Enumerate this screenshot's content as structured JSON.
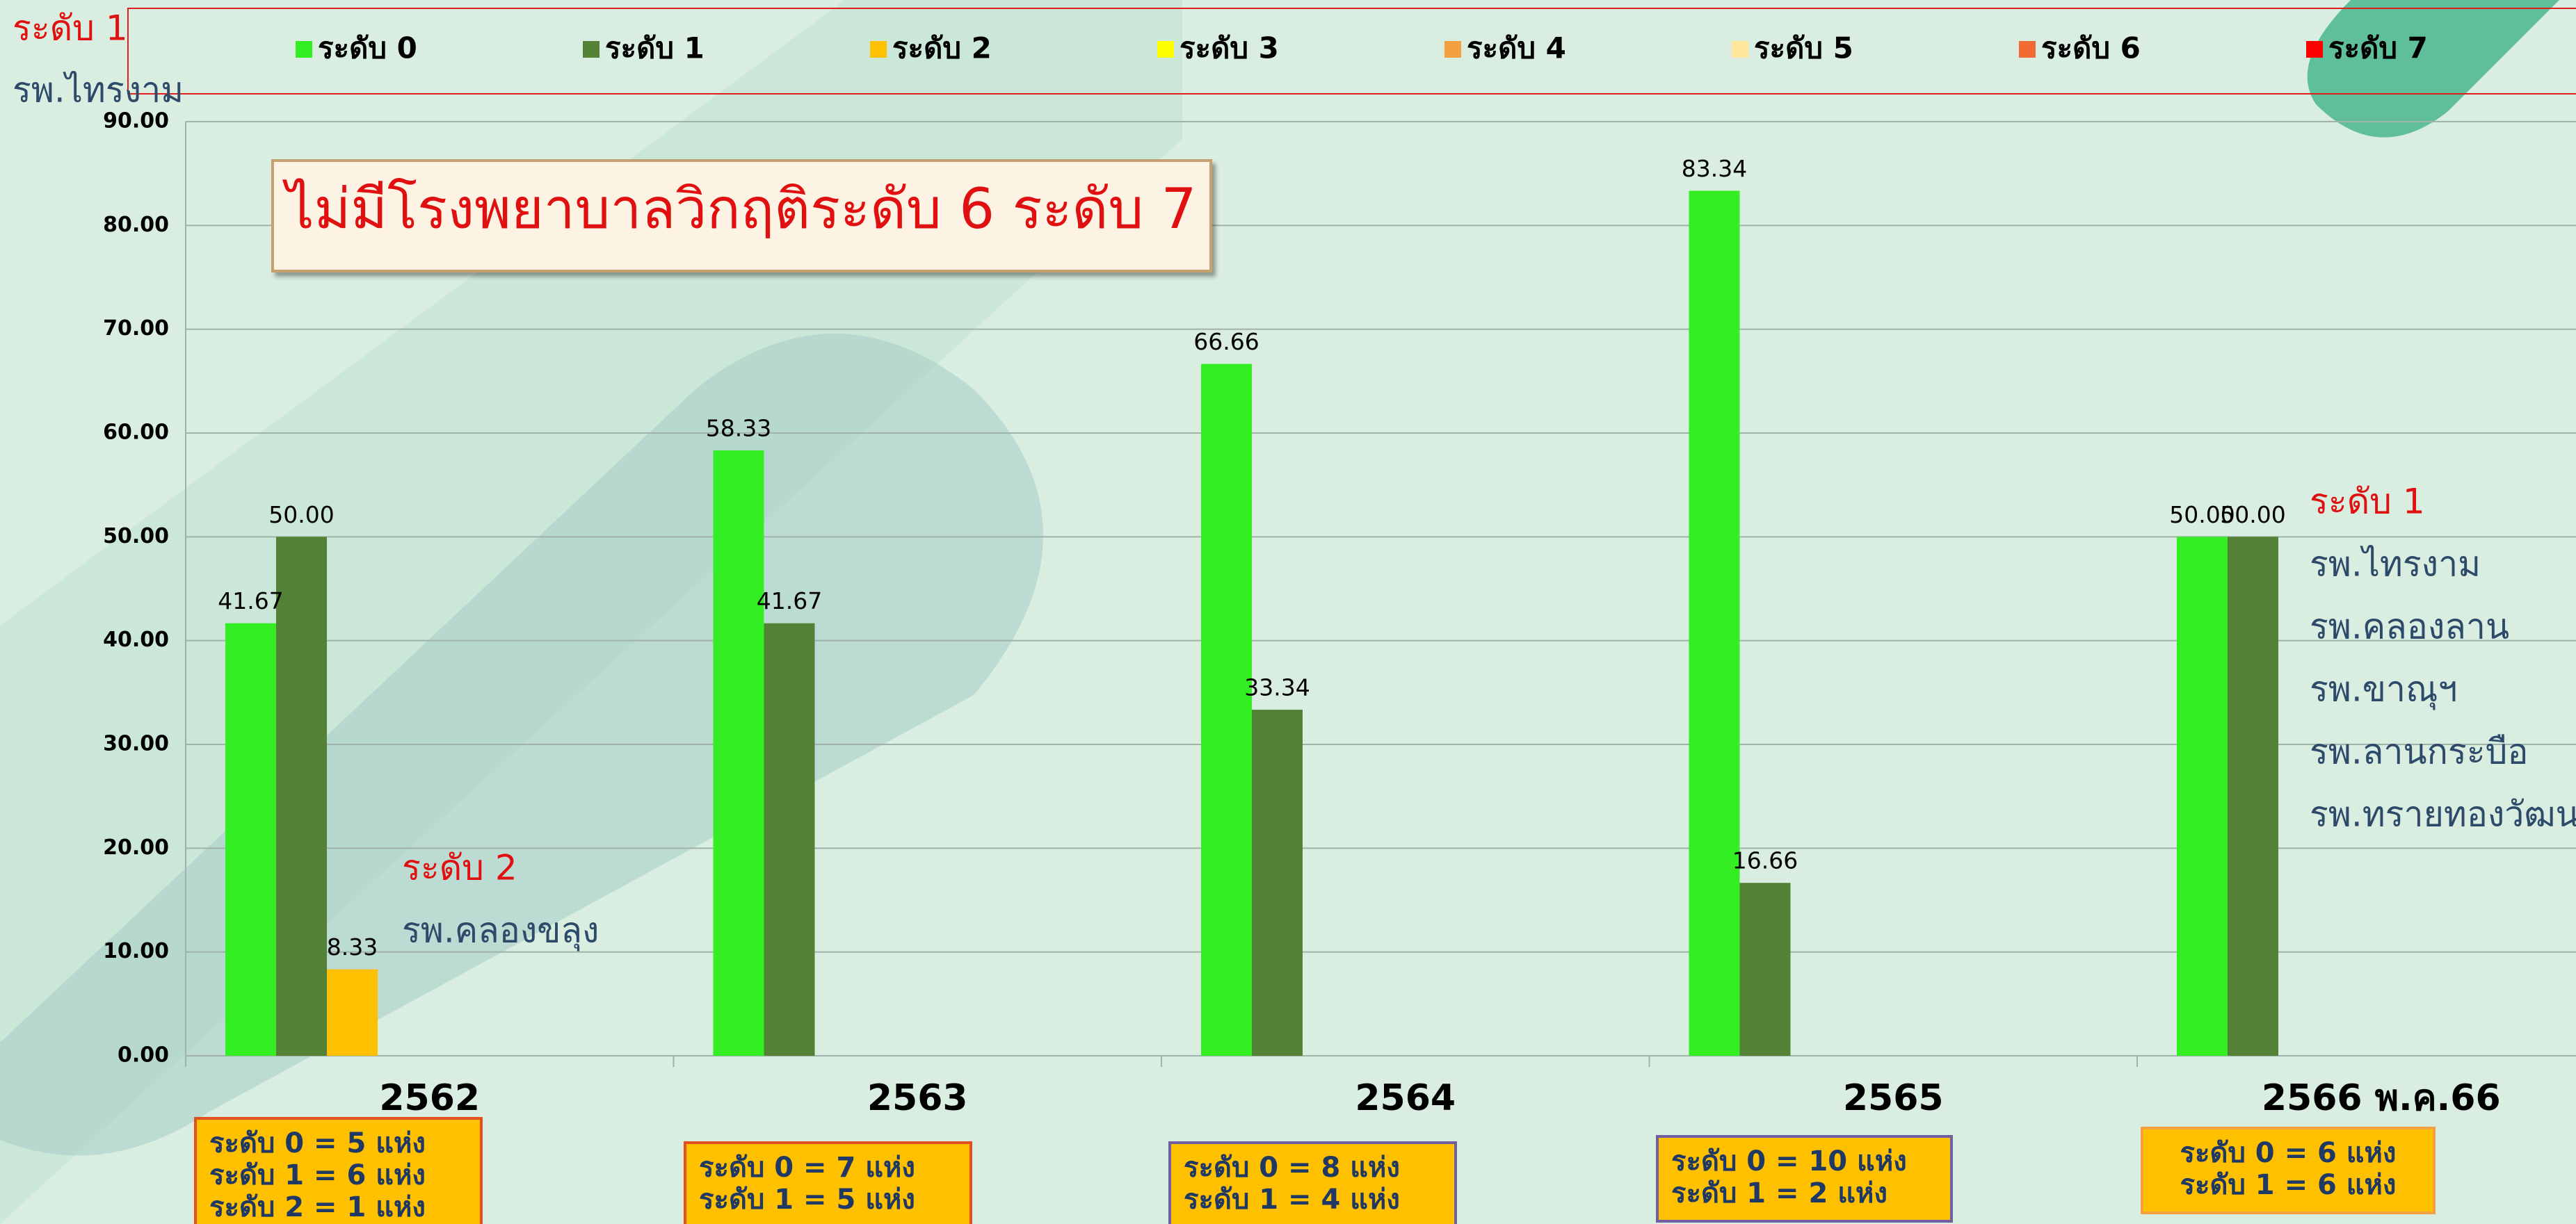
{
  "chart_data": {
    "type": "bar",
    "title": "ไม่มีโรงพยาบาลวิกฤติระดับ 6 ระดับ 7",
    "categories": [
      "2562",
      "2563",
      "2564",
      "2565",
      "2566 พ.ค.66"
    ],
    "series": [
      {
        "name": "ระดับ 0",
        "color": "#33ee22",
        "values": [
          41.67,
          58.33,
          66.66,
          83.34,
          50.0
        ],
        "value_labels": [
          "41.67",
          "58.33",
          "66.66",
          "83.34",
          "50.00"
        ]
      },
      {
        "name": "ระดับ 1",
        "color": "#538135",
        "values": [
          50.0,
          41.67,
          33.34,
          16.66,
          50.0
        ],
        "value_labels": [
          "50.00",
          "41.67",
          "33.34",
          "16.66",
          "50.00"
        ]
      },
      {
        "name": "ระดับ 2",
        "color": "#ffc000",
        "values": [
          8.33,
          null,
          null,
          null,
          null
        ],
        "value_labels": [
          "8.33",
          null,
          null,
          null,
          null
        ]
      },
      {
        "name": "ระดับ 3",
        "color": "#ffff00",
        "values": [
          null,
          null,
          null,
          null,
          null
        ]
      },
      {
        "name": "ระดับ 4",
        "color": "#f4a040",
        "values": [
          null,
          null,
          null,
          null,
          null
        ]
      },
      {
        "name": "ระดับ 5",
        "color": "#ffe699",
        "values": [
          null,
          null,
          null,
          null,
          null
        ]
      },
      {
        "name": "ระดับ 6",
        "color": "#f26b35",
        "values": [
          null,
          null,
          null,
          null,
          null
        ]
      },
      {
        "name": "ระดับ 7",
        "color": "#ff0000",
        "values": [
          null,
          null,
          null,
          null,
          null
        ]
      }
    ],
    "ylim": [
      0,
      90
    ],
    "yticks": [
      {
        "value": 0,
        "label": "0.00"
      },
      {
        "value": 10,
        "label": "10.00"
      },
      {
        "value": 20,
        "label": "20.00"
      },
      {
        "value": 30,
        "label": "30.00"
      },
      {
        "value": 40,
        "label": "40.00"
      },
      {
        "value": 50,
        "label": "50.00"
      },
      {
        "value": 60,
        "label": "60.00"
      },
      {
        "value": 70,
        "label": "70.00"
      },
      {
        "value": 80,
        "label": "80.00"
      },
      {
        "value": 90,
        "label": "90.00"
      }
    ],
    "grid": true,
    "legend": "top",
    "top_note": [
      "ระดับ 1",
      "รพ.ไทรงาม"
    ],
    "level2_note": [
      "ระดับ 2",
      "รพ.คลองขลุง"
    ],
    "right_note": {
      "heading": "ระดับ 1",
      "items": [
        "รพ.ไทรงาม",
        "รพ.คลองลาน",
        "รพ.ขาณุฯ",
        "รพ.ลานกระบือ",
        "รพ.ทรายทองวัฒนา"
      ]
    },
    "category_notes": [
      [
        "ระดับ 0 = 5 แห่ง",
        "ระดับ 1 = 6 แห่ง",
        "ระดับ 2 = 1 แห่ง"
      ],
      [
        "ระดับ 0 = 7 แห่ง",
        "ระดับ 1 = 5 แห่ง"
      ],
      [
        "ระดับ 0 = 8 แห่ง",
        "ระดับ 1 = 4 แห่ง"
      ],
      [
        "ระดับ 0 = 10 แห่ง",
        "ระดับ 1 = 2 แห่ง"
      ],
      [
        "ระดับ 0 = 6 แห่ง",
        "ระดับ 1 = 6 แห่ง"
      ]
    ]
  }
}
